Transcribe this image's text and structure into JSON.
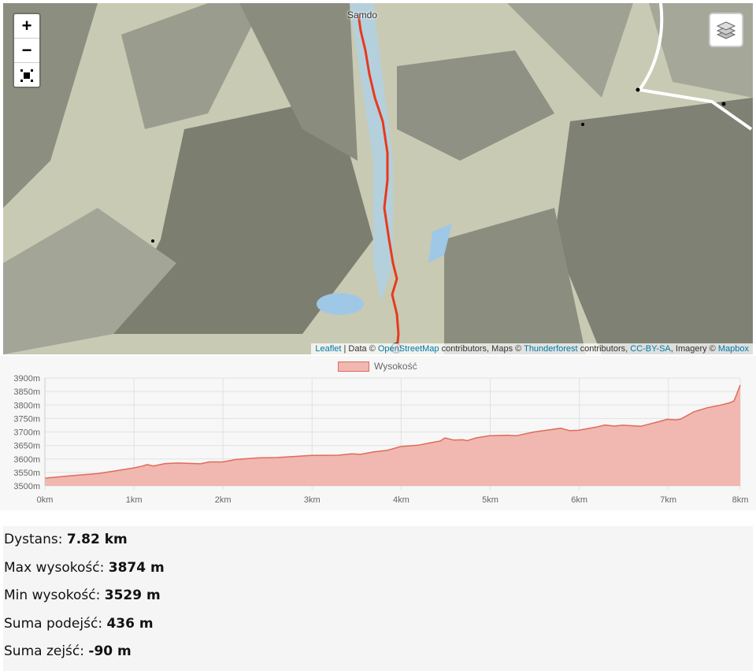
{
  "map": {
    "zoom_in_label": "+",
    "zoom_out_label": "−",
    "fullscreen_icon": "fullscreen-icon",
    "layers_icon": "layers-icon",
    "place_label": "Samdo",
    "route_color": "#e8391d",
    "attribution": {
      "leaflet": "Leaflet",
      "sep": " | Data © ",
      "osm": "OpenStreetMap",
      "t1": " contributors, Maps © ",
      "thunderforest": "Thunderforest",
      "t2": " contributors, ",
      "license": "CC-BY-SA",
      "t3": ", Imagery © ",
      "mapbox": "Mapbox"
    }
  },
  "chart_data": {
    "type": "area",
    "legend": "Wysokość",
    "fill_color": "#f0b8b0",
    "line_color": "#e06b5a",
    "xlim": [
      0,
      7.82
    ],
    "ylim": [
      3500,
      3900
    ],
    "x_ticks": [
      "0km",
      "1km",
      "2km",
      "3km",
      "4km",
      "5km",
      "6km",
      "7km",
      "8km"
    ],
    "y_ticks": [
      "3900m",
      "3850m",
      "3800m",
      "3750m",
      "3700m",
      "3650m",
      "3600m",
      "3550m",
      "3500m"
    ],
    "grid": true,
    "x": [
      0,
      0.3,
      0.6,
      0.8,
      1.0,
      1.1,
      1.15,
      1.22,
      1.35,
      1.5,
      1.75,
      1.85,
      2.0,
      2.15,
      2.4,
      2.6,
      3.0,
      3.3,
      3.45,
      3.55,
      3.7,
      3.85,
      4.0,
      4.2,
      4.35,
      4.45,
      4.5,
      4.6,
      4.7,
      4.75,
      4.85,
      5.0,
      5.2,
      5.3,
      5.5,
      5.7,
      5.8,
      5.9,
      6.0,
      6.2,
      6.3,
      6.4,
      6.5,
      6.7,
      6.9,
      7.0,
      7.1,
      7.15,
      7.3,
      7.45,
      7.6,
      7.7,
      7.75,
      7.82
    ],
    "y": [
      3529,
      3538,
      3546,
      3556,
      3567,
      3574,
      3579,
      3574,
      3583,
      3585,
      3582,
      3589,
      3589,
      3598,
      3604,
      3605,
      3613,
      3614,
      3619,
      3617,
      3626,
      3632,
      3646,
      3651,
      3661,
      3667,
      3678,
      3670,
      3671,
      3668,
      3678,
      3686,
      3688,
      3686,
      3700,
      3709,
      3714,
      3705,
      3706,
      3718,
      3726,
      3722,
      3725,
      3721,
      3738,
      3747,
      3745,
      3748,
      3775,
      3790,
      3800,
      3808,
      3815,
      3874
    ]
  },
  "stats": [
    {
      "label": "Dystans: ",
      "value": "7.82 km"
    },
    {
      "label": "Max wysokość: ",
      "value": "3874 m"
    },
    {
      "label": "Min wysokość: ",
      "value": "3529 m"
    },
    {
      "label": "Suma podejść: ",
      "value": "436 m"
    },
    {
      "label": "Suma zejść: ",
      "value": "-90 m"
    }
  ]
}
